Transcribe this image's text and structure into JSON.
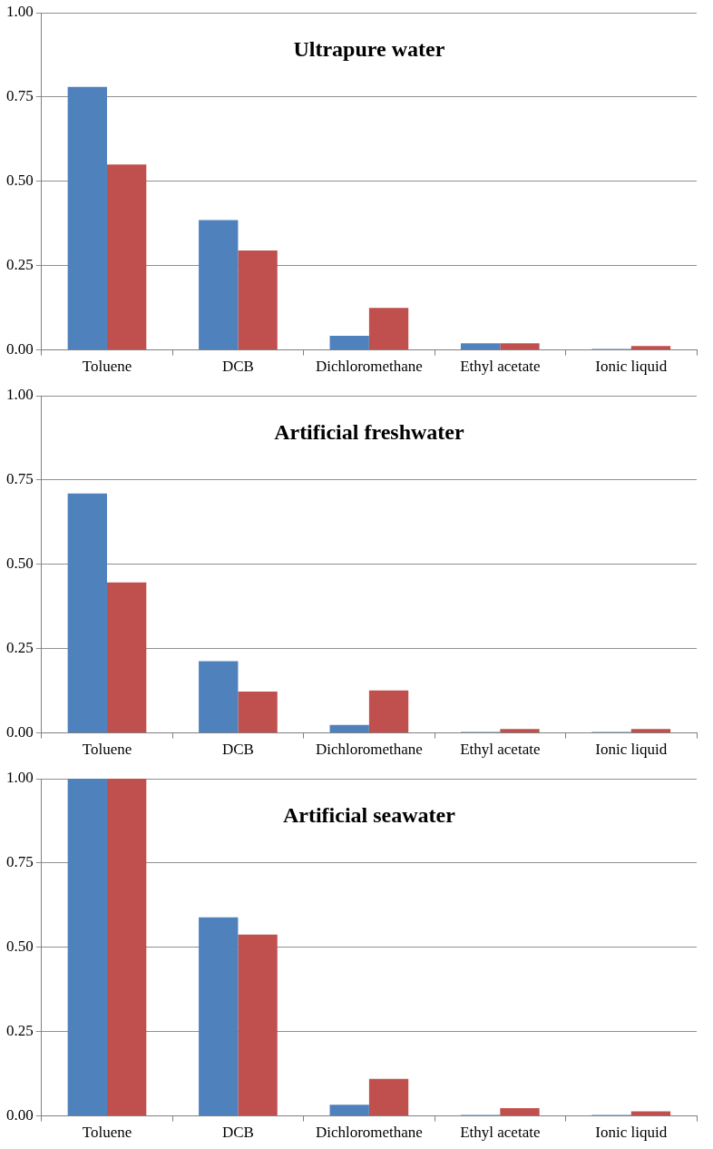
{
  "chart_data": [
    {
      "type": "bar",
      "title": "Ultrapure water",
      "categories": [
        "Toluene",
        "DCB",
        "Dichloromethane",
        "Ethyl acetate",
        "Ionic liquid"
      ],
      "series": [
        {
          "color": "#4f81bd",
          "values": [
            0.78,
            0.385,
            0.042,
            0.02,
            0.003
          ]
        },
        {
          "color": "#c0504d",
          "values": [
            0.55,
            0.295,
            0.125,
            0.02,
            0.012
          ]
        }
      ],
      "ylim": [
        0,
        1
      ],
      "yticks": [
        {
          "value": 0,
          "label": "0.00"
        },
        {
          "value": 0.25,
          "label": "0.25"
        },
        {
          "value": 0.5,
          "label": "0.50"
        },
        {
          "value": 0.75,
          "label": "0.75"
        },
        {
          "value": 1,
          "label": "1.00"
        }
      ],
      "grid": "y"
    },
    {
      "type": "bar",
      "title": "Artificial freshwater",
      "categories": [
        "Toluene",
        "DCB",
        "Dichloromethane",
        "Ethyl acetate",
        "Ionic liquid"
      ],
      "series": [
        {
          "color": "#4f81bd",
          "values": [
            0.71,
            0.213,
            0.024,
            0.003,
            0.003
          ]
        },
        {
          "color": "#c0504d",
          "values": [
            0.446,
            0.123,
            0.126,
            0.012,
            0.012
          ]
        }
      ],
      "ylim": [
        0,
        1
      ],
      "yticks": [
        {
          "value": 0,
          "label": "0.00"
        },
        {
          "value": 0.25,
          "label": "0.25"
        },
        {
          "value": 0.5,
          "label": "0.50"
        },
        {
          "value": 0.75,
          "label": "0.75"
        },
        {
          "value": 1,
          "label": "1.00"
        }
      ],
      "grid": "y"
    },
    {
      "type": "bar",
      "title": "Artificial seawater",
      "categories": [
        "Toluene",
        "DCB",
        "Dichloromethane",
        "Ethyl acetate",
        "Ionic liquid"
      ],
      "series": [
        {
          "color": "#4f81bd",
          "values": [
            1,
            0.589,
            0.033,
            0.003,
            0.003
          ]
        },
        {
          "color": "#c0504d",
          "values": [
            1,
            0.538,
            0.11,
            0.023,
            0.014
          ]
        }
      ],
      "ylim": [
        0,
        1
      ],
      "yticks": [
        {
          "value": 0,
          "label": "0.00"
        },
        {
          "value": 0.25,
          "label": "0.25"
        },
        {
          "value": 0.5,
          "label": "0.50"
        },
        {
          "value": 0.75,
          "label": "0.75"
        },
        {
          "value": 1,
          "label": "1.00"
        }
      ],
      "grid": "y"
    }
  ]
}
